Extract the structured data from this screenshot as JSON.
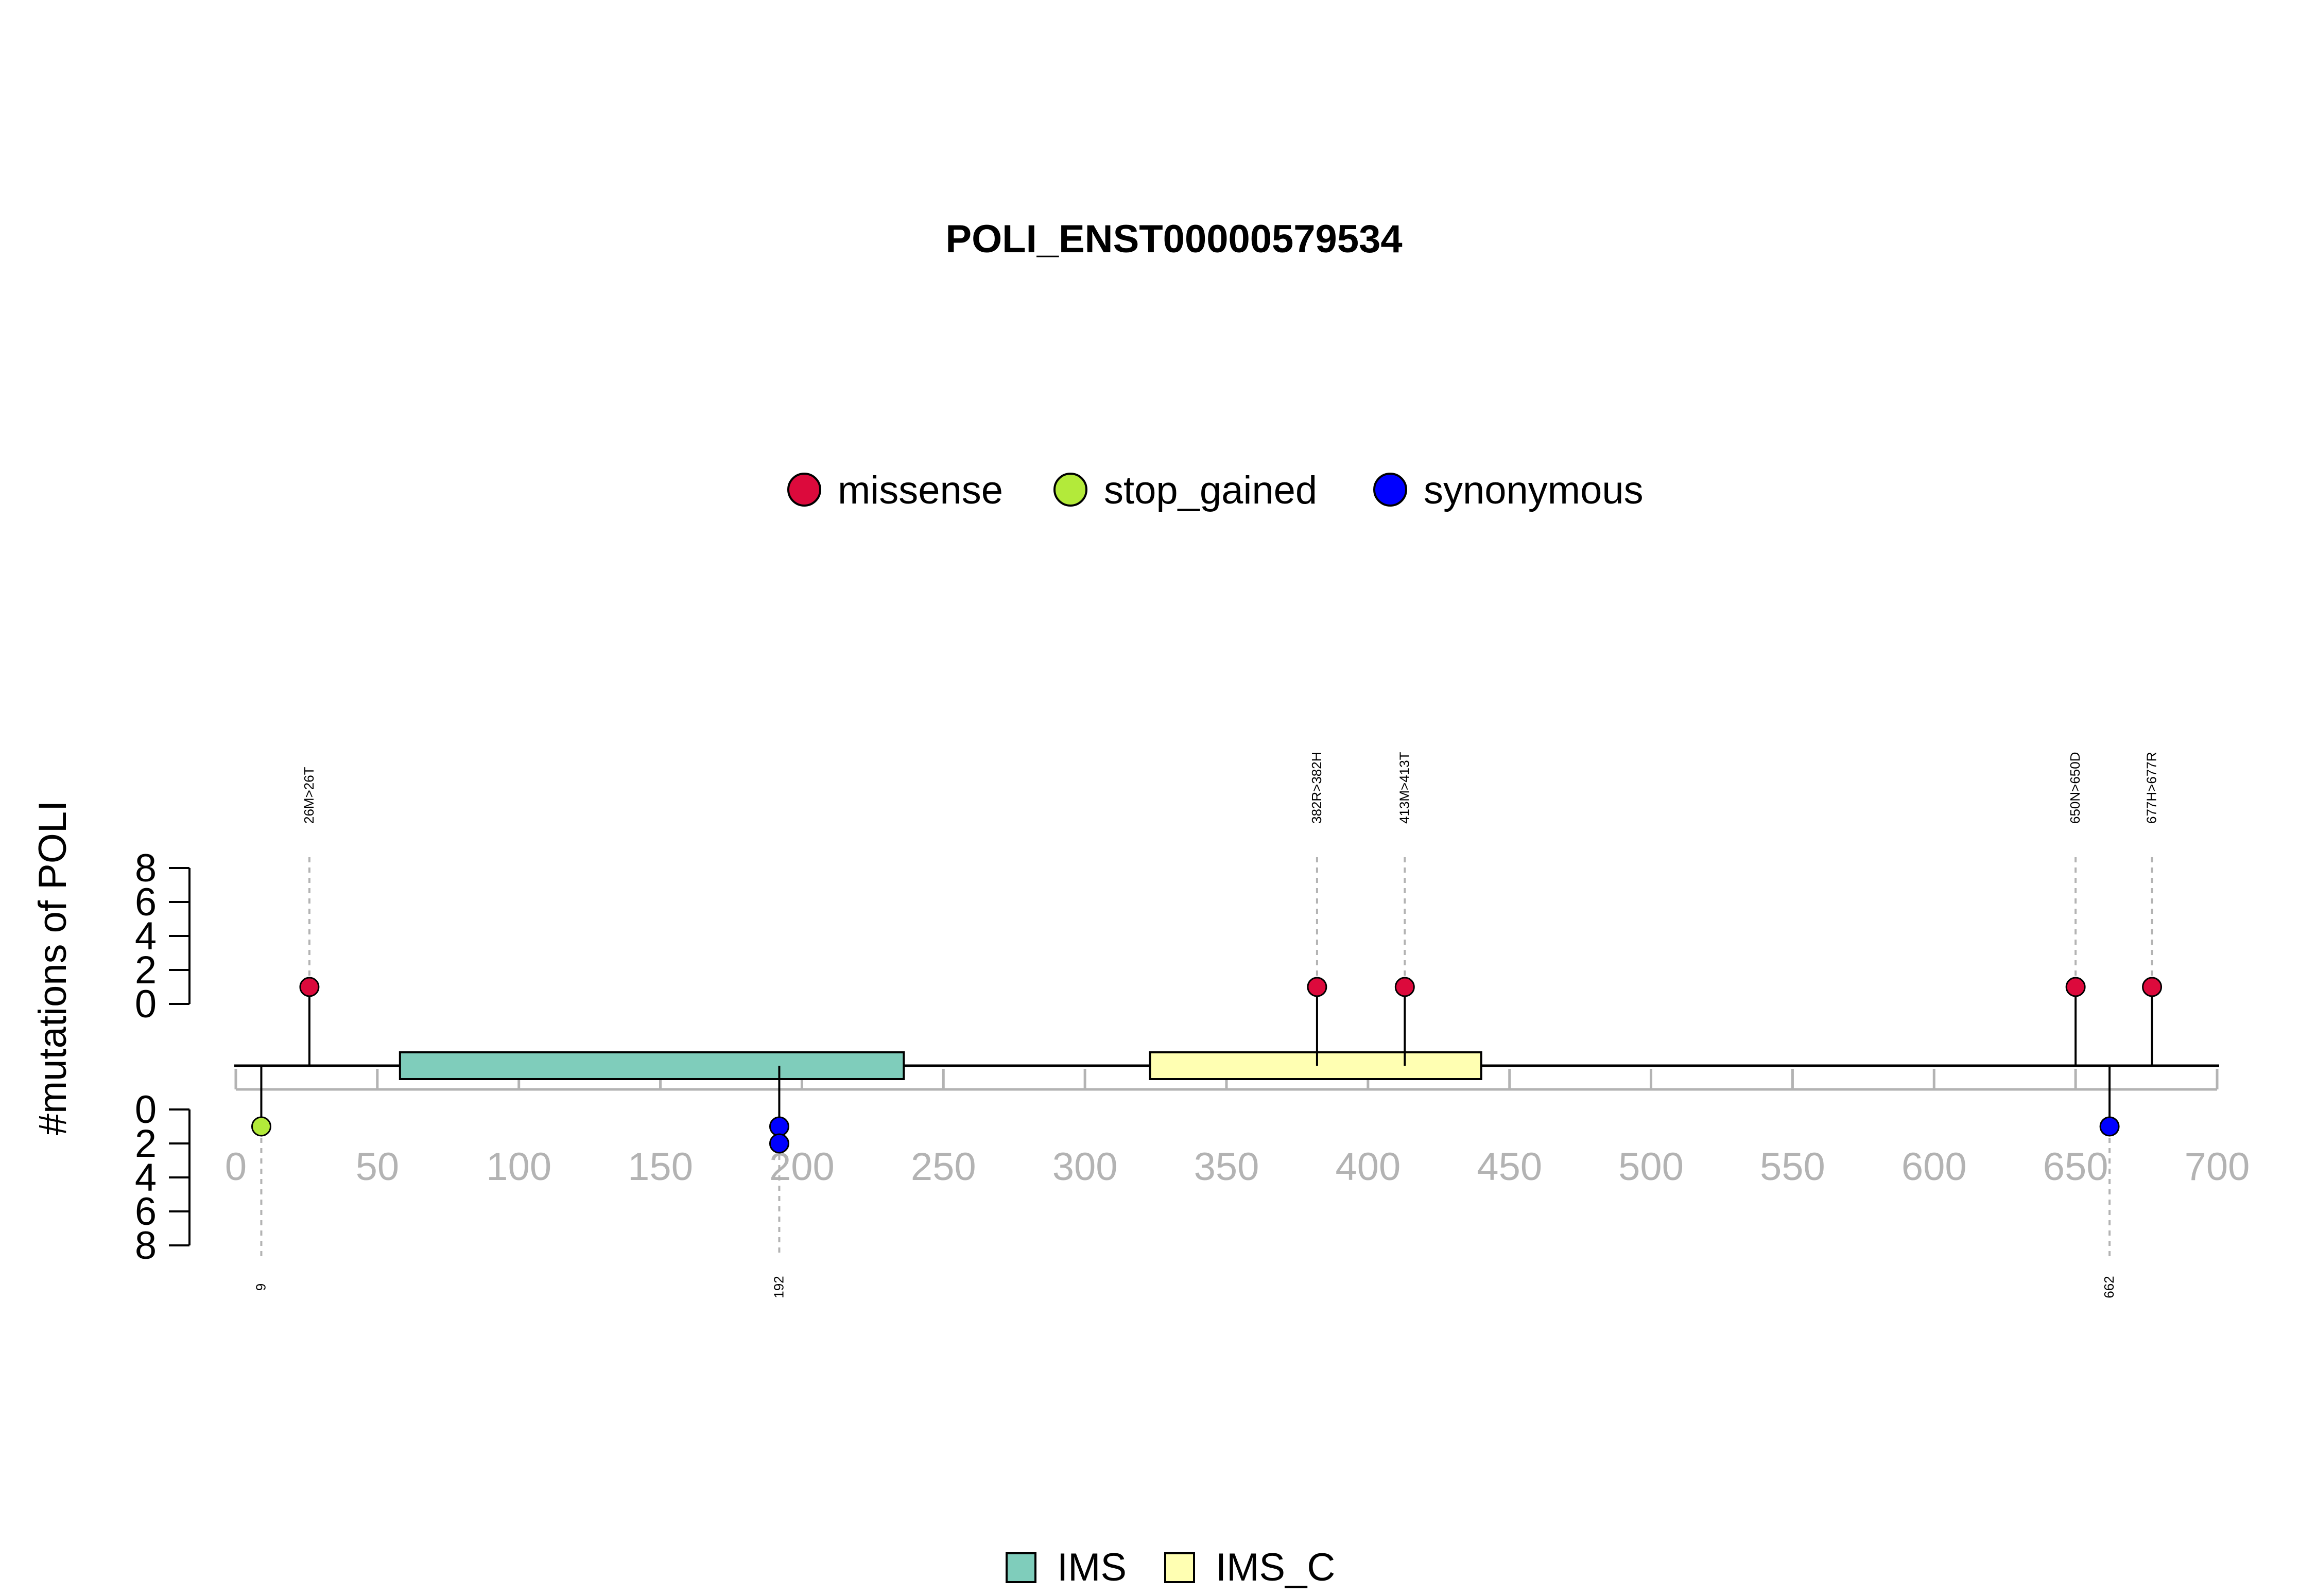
{
  "chart_data": {
    "type": "lollipop",
    "title": "POLI_ENST00000579534",
    "ylabel": "#mutations of POLI",
    "xlim": [
      0,
      700
    ],
    "x_ticks": [
      0,
      50,
      100,
      150,
      200,
      250,
      300,
      350,
      400,
      450,
      500,
      550,
      600,
      650,
      700
    ],
    "y_ticks": [
      0,
      2,
      4,
      6,
      8
    ],
    "legend_mutation_types": [
      {
        "name": "missense",
        "color": "#DC0A3C"
      },
      {
        "name": "stop_gained",
        "color": "#B3EA3A"
      },
      {
        "name": "synonymous",
        "color": "#0000FF"
      }
    ],
    "legend_domains": [
      {
        "name": "IMS",
        "color": "#7FCDBB"
      },
      {
        "name": "IMS_C",
        "color": "#FFFFB2"
      }
    ],
    "domains": [
      {
        "name": "IMS",
        "start": 58,
        "end": 236
      },
      {
        "name": "IMS_C",
        "start": 323,
        "end": 440
      }
    ],
    "mutations_top": [
      {
        "position": 26,
        "label": "26M>26T",
        "type": "missense",
        "count": 1
      },
      {
        "position": 382,
        "label": "382R>382H",
        "type": "missense",
        "count": 1
      },
      {
        "position": 413,
        "label": "413M>413T",
        "type": "missense",
        "count": 1
      },
      {
        "position": 650,
        "label": "650N>650D",
        "type": "missense",
        "count": 1
      },
      {
        "position": 677,
        "label": "677H>677R",
        "type": "missense",
        "count": 1
      }
    ],
    "mutations_bottom": [
      {
        "position": 9,
        "label": "9",
        "type": "stop_gained",
        "count": 1
      },
      {
        "position": 192,
        "label": "192",
        "type": "synonymous",
        "count": 2
      },
      {
        "position": 662,
        "label": "662",
        "type": "synonymous",
        "count": 1
      }
    ]
  }
}
